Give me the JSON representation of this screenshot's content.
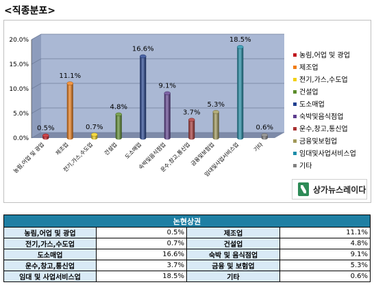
{
  "page_title": "<직종분포>",
  "brand": "상가뉴스레이다",
  "chart_data": {
    "type": "bar",
    "categories": [
      "농림,어업 및 광업",
      "제조업",
      "전기,가스,수도업",
      "건설업",
      "도소매업",
      "숙박및음식점업",
      "운수,창고,통신업",
      "금융및보험업",
      "임대및사업서비스업",
      "기타"
    ],
    "axis_labels": [
      "농림,어업 및 광업",
      "제조업",
      "전기,가스,수도업",
      "건설업",
      "도소매업",
      "숙박및음식점업",
      "운수,창고,통신업",
      "금융및보험업",
      "임대및사업서비스업",
      "기타"
    ],
    "values": [
      0.5,
      11.1,
      0.7,
      4.8,
      16.6,
      9.1,
      3.7,
      5.3,
      18.5,
      0.6
    ],
    "data_labels": [
      "0.5%",
      "11.1%",
      "0.7%",
      "4.8%",
      "16.6%",
      "9.1%",
      "3.7%",
      "5.3%",
      "18.5%",
      "0.6%"
    ],
    "colors": [
      "#c0161d",
      "#f07c14",
      "#f2d014",
      "#5b8c2a",
      "#1f3f8f",
      "#5d3d8f",
      "#a83232",
      "#a09858",
      "#1c8ca8",
      "#808080"
    ],
    "ylim": [
      0,
      20
    ],
    "yticks": [
      0,
      5,
      10,
      15,
      20
    ],
    "ytick_labels": [
      "0.0%",
      "5.0%",
      "10.0%",
      "15.0%",
      "20.0%"
    ],
    "legend": [
      "농림,어업 및 광업",
      "제조업",
      "전기,가스,수도업",
      "건설업",
      "도소매업",
      "숙박및음식점업",
      "운수,창고,통신업",
      "금융및보험업",
      "임대및사업서비스업",
      "기타"
    ],
    "legend_position": "right",
    "grid": true
  },
  "table": {
    "header": "논현상권",
    "rows": [
      {
        "l1": "농림,어업 및 광업",
        "v1": "0.5%",
        "l2": "제조업",
        "v2": "11.1%"
      },
      {
        "l1": "전기,가스,수도업",
        "v1": "0.7%",
        "l2": "건설업",
        "v2": "4.8%"
      },
      {
        "l1": "도소매업",
        "v1": "16.6%",
        "l2": "숙박 및 음식점업",
        "v2": "9.1%"
      },
      {
        "l1": "운수,창고,통신업",
        "v1": "3.7%",
        "l2": "금융 및 보험업",
        "v2": "5.3%"
      },
      {
        "l1": "임대 및 사업서비스업",
        "v1": "18.5%",
        "l2": "기타",
        "v2": "0.6%"
      }
    ]
  }
}
